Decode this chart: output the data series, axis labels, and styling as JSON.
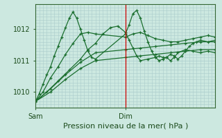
{
  "background_color": "#cce8e0",
  "plot_bg_color": "#cce8e0",
  "grid_color": "#aacccc",
  "line_color": "#1a6e2e",
  "title": "Pression niveau de la mer( hPa )",
  "ylim": [
    1009.5,
    1012.8
  ],
  "xlim": [
    0,
    48
  ],
  "yticks": [
    1010,
    1011,
    1012
  ],
  "xtick_labels": [
    "Sam",
    "Dim"
  ],
  "xtick_positions": [
    0,
    24
  ],
  "red_line_x": 24,
  "series": [
    [
      0,
      1009.7,
      1,
      1009.95,
      2,
      1010.25,
      3,
      1010.55,
      4,
      1010.8,
      5,
      1011.15,
      6,
      1011.45,
      7,
      1011.75,
      8,
      1012.05,
      9,
      1012.35,
      10,
      1012.55,
      11,
      1012.35,
      12,
      1012.0,
      13,
      1011.65,
      14,
      1011.3,
      15,
      1011.1,
      16,
      1011.05,
      24,
      1011.85,
      25,
      1012.15,
      26,
      1012.5,
      27,
      1012.6,
      28,
      1012.35,
      29,
      1011.95,
      30,
      1011.6,
      31,
      1011.3,
      32,
      1011.1,
      33,
      1011.0,
      34,
      1011.05,
      35,
      1011.1,
      36,
      1011.2,
      37,
      1011.15,
      38,
      1011.05,
      39,
      1011.15,
      40,
      1011.3,
      41,
      1011.45,
      42,
      1011.55,
      43,
      1011.6,
      44,
      1011.65,
      46,
      1011.6,
      48,
      1011.65
    ],
    [
      0,
      1009.7,
      2,
      1010.0,
      4,
      1010.45,
      6,
      1010.8,
      8,
      1011.2,
      10,
      1011.55,
      12,
      1011.85,
      14,
      1011.9,
      16,
      1011.85,
      24,
      1011.75,
      26,
      1011.85,
      28,
      1011.9,
      30,
      1011.8,
      32,
      1011.7,
      34,
      1011.65,
      36,
      1011.6,
      38,
      1011.6,
      40,
      1011.65,
      42,
      1011.7,
      44,
      1011.75,
      46,
      1011.8,
      48,
      1011.75
    ],
    [
      0,
      1009.7,
      4,
      1010.1,
      8,
      1010.55,
      12,
      1010.95,
      16,
      1011.25,
      24,
      1011.35,
      28,
      1011.4,
      32,
      1011.45,
      36,
      1011.5,
      40,
      1011.55,
      44,
      1011.6,
      48,
      1011.6
    ],
    [
      0,
      1009.7,
      4,
      1010.0,
      8,
      1010.4,
      12,
      1010.75,
      16,
      1011.0,
      24,
      1011.1,
      28,
      1011.15,
      32,
      1011.2,
      36,
      1011.25,
      40,
      1011.3,
      44,
      1011.35,
      48,
      1011.35
    ],
    [
      0,
      1009.7,
      3,
      1010.0,
      6,
      1010.35,
      9,
      1010.7,
      12,
      1011.05,
      14,
      1011.35,
      16,
      1011.55,
      18,
      1011.85,
      20,
      1012.05,
      22,
      1012.1,
      24,
      1011.9,
      25,
      1011.65,
      26,
      1011.4,
      27,
      1011.15,
      28,
      1011.0,
      30,
      1011.05,
      32,
      1011.1,
      33,
      1011.15,
      34,
      1011.1,
      35,
      1011.1,
      36,
      1011.0,
      37,
      1011.1,
      38,
      1011.25,
      40,
      1011.35,
      42,
      1011.3,
      44,
      1011.25,
      46,
      1011.3,
      48,
      1011.25
    ]
  ]
}
